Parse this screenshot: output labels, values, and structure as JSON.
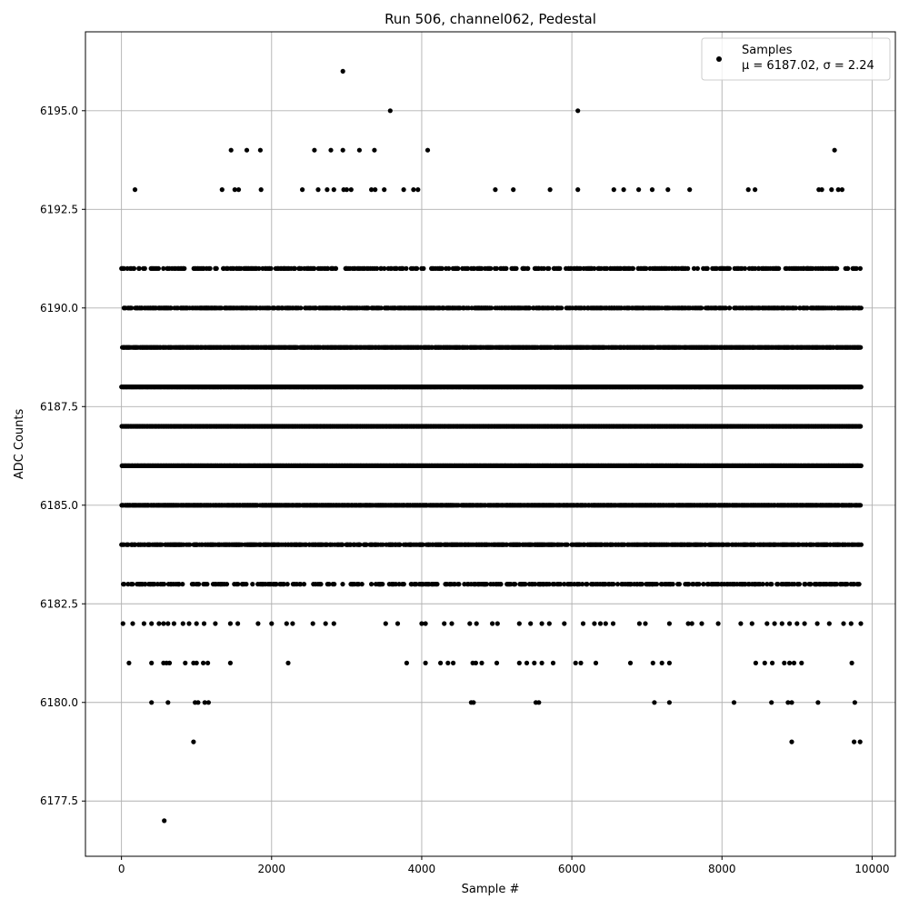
{
  "chart_data": {
    "type": "scatter",
    "title": "Run 506, channel062, Pedestal",
    "xlabel": "Sample #",
    "ylabel": "ADC Counts",
    "xlim": [
      -480,
      10310
    ],
    "ylim": [
      6176.1,
      6197.0
    ],
    "xticks": [
      0,
      2000,
      4000,
      6000,
      8000,
      10000
    ],
    "xtick_labels": [
      "0",
      "2000",
      "4000",
      "6000",
      "8000",
      "10000"
    ],
    "yticks": [
      6177.5,
      6180.0,
      6182.5,
      6185.0,
      6187.5,
      6190.0,
      6192.5,
      6195.0
    ],
    "ytick_labels": [
      "6177.5",
      "6180.0",
      "6182.5",
      "6185.0",
      "6187.5",
      "6190.0",
      "6192.5",
      "6195.0"
    ],
    "grid": true,
    "legend_position": "top-right",
    "marker_color": "#000000",
    "series": [
      {
        "name": "Samples",
        "stats_label": "μ = 6187.02, σ = 2.24",
        "note": "~9850 samples; dense integer-valued bands 6183–6191, sparse outliers listed explicitly",
        "x_range": [
          0,
          9850
        ],
        "density_bands": [
          {
            "y": 6191,
            "density": 0.35
          },
          {
            "y": 6190,
            "density": 0.6
          },
          {
            "y": 6189,
            "density": 0.85
          },
          {
            "y": 6188,
            "density": 1.0
          },
          {
            "y": 6187,
            "density": 1.0
          },
          {
            "y": 6186,
            "density": 1.0
          },
          {
            "y": 6185,
            "density": 0.85
          },
          {
            "y": 6184,
            "density": 0.6
          },
          {
            "y": 6183,
            "density": 0.3
          }
        ],
        "points": [
          [
            570,
            6177
          ],
          [
            960,
            6179
          ],
          [
            8930,
            6179
          ],
          [
            9760,
            6179
          ],
          [
            9840,
            6179
          ],
          [
            400,
            6180
          ],
          [
            620,
            6180
          ],
          [
            980,
            6180
          ],
          [
            1020,
            6180
          ],
          [
            1110,
            6180
          ],
          [
            1160,
            6180
          ],
          [
            4660,
            6180
          ],
          [
            4690,
            6180
          ],
          [
            5520,
            6180
          ],
          [
            5560,
            6180
          ],
          [
            7100,
            6180
          ],
          [
            7300,
            6180
          ],
          [
            8160,
            6180
          ],
          [
            8660,
            6180
          ],
          [
            8880,
            6180
          ],
          [
            8930,
            6180
          ],
          [
            9280,
            6180
          ],
          [
            9770,
            6180
          ],
          [
            100,
            6181
          ],
          [
            400,
            6181
          ],
          [
            560,
            6181
          ],
          [
            600,
            6181
          ],
          [
            640,
            6181
          ],
          [
            850,
            6181
          ],
          [
            960,
            6181
          ],
          [
            1000,
            6181
          ],
          [
            1090,
            6181
          ],
          [
            1150,
            6181
          ],
          [
            1450,
            6181
          ],
          [
            2220,
            6181
          ],
          [
            3800,
            6181
          ],
          [
            4050,
            6181
          ],
          [
            4250,
            6181
          ],
          [
            4350,
            6181
          ],
          [
            4420,
            6181
          ],
          [
            4680,
            6181
          ],
          [
            4720,
            6181
          ],
          [
            4800,
            6181
          ],
          [
            5000,
            6181
          ],
          [
            5300,
            6181
          ],
          [
            5400,
            6181
          ],
          [
            5500,
            6181
          ],
          [
            5600,
            6181
          ],
          [
            5750,
            6181
          ],
          [
            6050,
            6181
          ],
          [
            6120,
            6181
          ],
          [
            6320,
            6181
          ],
          [
            6780,
            6181
          ],
          [
            7080,
            6181
          ],
          [
            7200,
            6181
          ],
          [
            7300,
            6181
          ],
          [
            8450,
            6181
          ],
          [
            8570,
            6181
          ],
          [
            8670,
            6181
          ],
          [
            8830,
            6181
          ],
          [
            8900,
            6181
          ],
          [
            8960,
            6181
          ],
          [
            9060,
            6181
          ],
          [
            9730,
            6181
          ],
          [
            20,
            6182
          ],
          [
            150,
            6182
          ],
          [
            300,
            6182
          ],
          [
            400,
            6182
          ],
          [
            500,
            6182
          ],
          [
            560,
            6182
          ],
          [
            620,
            6182
          ],
          [
            700,
            6182
          ],
          [
            820,
            6182
          ],
          [
            900,
            6182
          ],
          [
            1000,
            6182
          ],
          [
            1100,
            6182
          ],
          [
            1250,
            6182
          ],
          [
            1450,
            6182
          ],
          [
            1550,
            6182
          ],
          [
            1820,
            6182
          ],
          [
            2000,
            6182
          ],
          [
            2200,
            6182
          ],
          [
            2280,
            6182
          ],
          [
            2550,
            6182
          ],
          [
            2720,
            6182
          ],
          [
            2830,
            6182
          ],
          [
            3520,
            6182
          ],
          [
            3680,
            6182
          ],
          [
            4000,
            6182
          ],
          [
            4050,
            6182
          ],
          [
            4300,
            6182
          ],
          [
            4400,
            6182
          ],
          [
            4640,
            6182
          ],
          [
            4730,
            6182
          ],
          [
            4940,
            6182
          ],
          [
            5010,
            6182
          ],
          [
            5300,
            6182
          ],
          [
            5450,
            6182
          ],
          [
            5600,
            6182
          ],
          [
            5700,
            6182
          ],
          [
            5900,
            6182
          ],
          [
            6150,
            6182
          ],
          [
            6300,
            6182
          ],
          [
            6380,
            6182
          ],
          [
            6450,
            6182
          ],
          [
            6550,
            6182
          ],
          [
            6900,
            6182
          ],
          [
            6980,
            6182
          ],
          [
            7300,
            6182
          ],
          [
            7550,
            6182
          ],
          [
            7600,
            6182
          ],
          [
            7730,
            6182
          ],
          [
            7950,
            6182
          ],
          [
            8250,
            6182
          ],
          [
            8400,
            6182
          ],
          [
            8600,
            6182
          ],
          [
            8700,
            6182
          ],
          [
            8800,
            6182
          ],
          [
            8900,
            6182
          ],
          [
            9000,
            6182
          ],
          [
            9100,
            6182
          ],
          [
            9270,
            6182
          ],
          [
            9430,
            6182
          ],
          [
            9620,
            6182
          ],
          [
            9720,
            6182
          ],
          [
            9850,
            6182
          ],
          [
            180,
            6193
          ],
          [
            1340,
            6193
          ],
          [
            1510,
            6193
          ],
          [
            1560,
            6193
          ],
          [
            1860,
            6193
          ],
          [
            2410,
            6193
          ],
          [
            2620,
            6193
          ],
          [
            2740,
            6193
          ],
          [
            2830,
            6193
          ],
          [
            2960,
            6193
          ],
          [
            3000,
            6193
          ],
          [
            3060,
            6193
          ],
          [
            3330,
            6193
          ],
          [
            3380,
            6193
          ],
          [
            3500,
            6193
          ],
          [
            3760,
            6193
          ],
          [
            3890,
            6193
          ],
          [
            3950,
            6193
          ],
          [
            4980,
            6193
          ],
          [
            5220,
            6193
          ],
          [
            5710,
            6193
          ],
          [
            6080,
            6193
          ],
          [
            6560,
            6193
          ],
          [
            6690,
            6193
          ],
          [
            6890,
            6193
          ],
          [
            7070,
            6193
          ],
          [
            7280,
            6193
          ],
          [
            7570,
            6193
          ],
          [
            8350,
            6193
          ],
          [
            8440,
            6193
          ],
          [
            9290,
            6193
          ],
          [
            9330,
            6193
          ],
          [
            9460,
            6193
          ],
          [
            9550,
            6193
          ],
          [
            9600,
            6193
          ],
          [
            1460,
            6194
          ],
          [
            1670,
            6194
          ],
          [
            1850,
            6194
          ],
          [
            2570,
            6194
          ],
          [
            2790,
            6194
          ],
          [
            2950,
            6194
          ],
          [
            3170,
            6194
          ],
          [
            3370,
            6194
          ],
          [
            4080,
            6194
          ],
          [
            9500,
            6194
          ],
          [
            3580,
            6195
          ],
          [
            6080,
            6195
          ],
          [
            2950,
            6196
          ]
        ]
      }
    ]
  }
}
